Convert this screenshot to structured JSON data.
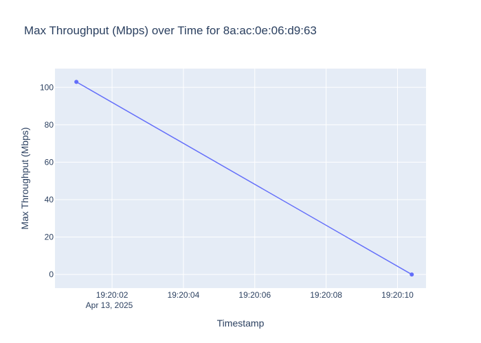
{
  "chart_data": {
    "type": "line",
    "title": "Max Throughput (Mbps) over Time for 8a:ac:0e:06:d9:63",
    "xlabel": "Timestamp",
    "ylabel": "Max Throughput (Mbps)",
    "x_ticks": [
      "19:20:02",
      "19:20:04",
      "19:20:06",
      "19:20:08",
      "19:20:10"
    ],
    "x_date_label": "Apr 13, 2025",
    "y_ticks": [
      0,
      20,
      40,
      60,
      80,
      100
    ],
    "xlim": [
      "19:20:00.4",
      "19:20:10.8"
    ],
    "ylim": [
      -7.3,
      110
    ],
    "x": [
      "19:20:01.0",
      "19:20:10.4"
    ],
    "values": [
      102.9,
      0
    ],
    "grid": true,
    "colors": {
      "plot_bg": "#e5ecf6",
      "grid": "#ffffff",
      "line": "#636efa",
      "text": "#2a3f5f"
    }
  }
}
